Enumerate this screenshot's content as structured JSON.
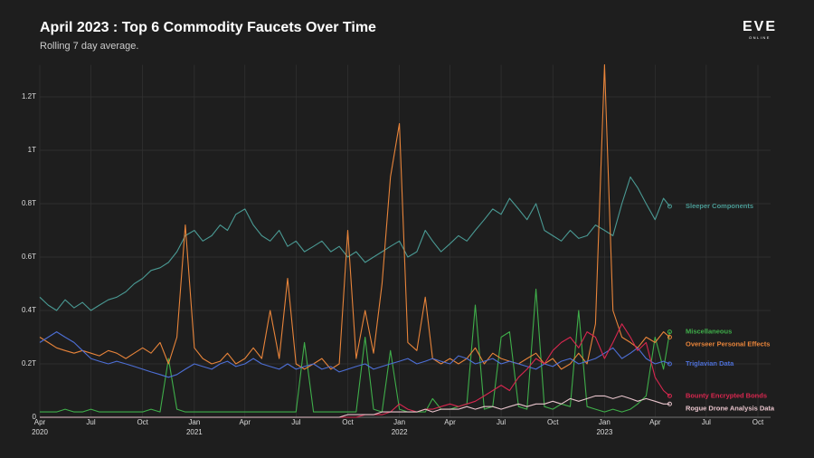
{
  "chart_data": {
    "type": "line",
    "title": "April 2023 : Top 6 Commodity Faucets Over Time",
    "subtitle": "Rolling 7 day average.",
    "logo": {
      "text": "EVE",
      "subtext": "ONLINE"
    },
    "x": [
      "2020-04-01",
      "2020-04-16",
      "2020-05-01",
      "2020-05-16",
      "2020-06-01",
      "2020-06-16",
      "2020-07-01",
      "2020-07-16",
      "2020-08-01",
      "2020-08-16",
      "2020-09-01",
      "2020-09-16",
      "2020-10-01",
      "2020-10-16",
      "2020-11-01",
      "2020-11-16",
      "2020-12-01",
      "2020-12-16",
      "2021-01-01",
      "2021-01-16",
      "2021-02-01",
      "2021-02-16",
      "2021-03-01",
      "2021-03-16",
      "2021-04-01",
      "2021-04-16",
      "2021-05-01",
      "2021-05-16",
      "2021-06-01",
      "2021-06-16",
      "2021-07-01",
      "2021-07-16",
      "2021-08-01",
      "2021-08-16",
      "2021-09-01",
      "2021-09-16",
      "2021-10-01",
      "2021-10-16",
      "2021-11-01",
      "2021-11-16",
      "2021-12-01",
      "2021-12-16",
      "2022-01-01",
      "2022-01-16",
      "2022-02-01",
      "2022-02-16",
      "2022-03-01",
      "2022-03-16",
      "2022-04-01",
      "2022-04-16",
      "2022-05-01",
      "2022-05-16",
      "2022-06-01",
      "2022-06-16",
      "2022-07-01",
      "2022-07-16",
      "2022-08-01",
      "2022-08-16",
      "2022-09-01",
      "2022-09-16",
      "2022-10-01",
      "2022-10-16",
      "2022-11-01",
      "2022-11-16",
      "2022-12-01",
      "2022-12-16",
      "2023-01-01",
      "2023-01-16",
      "2023-02-01",
      "2023-02-16",
      "2023-03-01",
      "2023-03-16",
      "2023-04-01",
      "2023-04-16",
      "2023-04-27"
    ],
    "series": [
      {
        "name": "Sleeper Components",
        "color": "#4a9a94",
        "values": [
          0.45,
          0.42,
          0.4,
          0.44,
          0.41,
          0.43,
          0.4,
          0.42,
          0.44,
          0.45,
          0.47,
          0.5,
          0.52,
          0.55,
          0.56,
          0.58,
          0.62,
          0.68,
          0.7,
          0.66,
          0.68,
          0.72,
          0.7,
          0.76,
          0.78,
          0.72,
          0.68,
          0.66,
          0.7,
          0.64,
          0.66,
          0.62,
          0.64,
          0.66,
          0.62,
          0.64,
          0.6,
          0.62,
          0.58,
          0.6,
          0.62,
          0.64,
          0.66,
          0.6,
          0.62,
          0.7,
          0.66,
          0.62,
          0.65,
          0.68,
          0.66,
          0.7,
          0.74,
          0.78,
          0.76,
          0.82,
          0.78,
          0.74,
          0.8,
          0.7,
          0.68,
          0.66,
          0.7,
          0.67,
          0.68,
          0.72,
          0.7,
          0.68,
          0.8,
          0.9,
          0.86,
          0.8,
          0.74,
          0.82,
          0.79
        ]
      },
      {
        "name": "Miscellaneous",
        "color": "#3fae4a",
        "values": [
          0.02,
          0.02,
          0.02,
          0.03,
          0.02,
          0.02,
          0.03,
          0.02,
          0.02,
          0.02,
          0.02,
          0.02,
          0.02,
          0.03,
          0.02,
          0.22,
          0.03,
          0.02,
          0.02,
          0.02,
          0.02,
          0.02,
          0.02,
          0.02,
          0.02,
          0.02,
          0.02,
          0.02,
          0.02,
          0.02,
          0.02,
          0.28,
          0.02,
          0.02,
          0.02,
          0.02,
          0.02,
          0.02,
          0.3,
          0.03,
          0.02,
          0.25,
          0.03,
          0.02,
          0.02,
          0.02,
          0.07,
          0.03,
          0.03,
          0.04,
          0.05,
          0.42,
          0.03,
          0.04,
          0.3,
          0.32,
          0.04,
          0.03,
          0.48,
          0.04,
          0.03,
          0.05,
          0.04,
          0.4,
          0.04,
          0.03,
          0.02,
          0.03,
          0.02,
          0.03,
          0.05,
          0.08,
          0.3,
          0.18,
          0.32
        ]
      },
      {
        "name": "Overseer Personal Effects",
        "color": "#e8843a",
        "values": [
          0.3,
          0.28,
          0.26,
          0.25,
          0.24,
          0.25,
          0.24,
          0.23,
          0.25,
          0.24,
          0.22,
          0.24,
          0.26,
          0.24,
          0.28,
          0.2,
          0.3,
          0.72,
          0.26,
          0.22,
          0.2,
          0.21,
          0.24,
          0.2,
          0.22,
          0.26,
          0.22,
          0.4,
          0.22,
          0.52,
          0.2,
          0.18,
          0.2,
          0.22,
          0.18,
          0.2,
          0.7,
          0.22,
          0.4,
          0.24,
          0.5,
          0.9,
          1.1,
          0.28,
          0.25,
          0.45,
          0.22,
          0.2,
          0.22,
          0.2,
          0.22,
          0.26,
          0.2,
          0.24,
          0.22,
          0.21,
          0.2,
          0.22,
          0.24,
          0.2,
          0.22,
          0.18,
          0.2,
          0.24,
          0.2,
          0.35,
          1.32,
          0.4,
          0.3,
          0.28,
          0.26,
          0.3,
          0.28,
          0.32,
          0.3
        ]
      },
      {
        "name": "Triglavian Data",
        "color": "#4d6fd6",
        "values": [
          0.28,
          0.3,
          0.32,
          0.3,
          0.28,
          0.25,
          0.22,
          0.21,
          0.2,
          0.21,
          0.2,
          0.19,
          0.18,
          0.17,
          0.16,
          0.15,
          0.16,
          0.18,
          0.2,
          0.19,
          0.18,
          0.2,
          0.21,
          0.19,
          0.2,
          0.22,
          0.2,
          0.19,
          0.18,
          0.2,
          0.18,
          0.19,
          0.2,
          0.18,
          0.19,
          0.17,
          0.18,
          0.19,
          0.2,
          0.18,
          0.19,
          0.2,
          0.21,
          0.22,
          0.2,
          0.21,
          0.22,
          0.21,
          0.2,
          0.23,
          0.22,
          0.2,
          0.21,
          0.22,
          0.2,
          0.21,
          0.2,
          0.19,
          0.18,
          0.2,
          0.19,
          0.21,
          0.22,
          0.2,
          0.21,
          0.22,
          0.24,
          0.26,
          0.22,
          0.24,
          0.26,
          0.22,
          0.2,
          0.21,
          0.2
        ]
      },
      {
        "name": "Bounty Encrypted Bonds",
        "color": "#d8274f",
        "values": [
          0,
          0,
          0,
          0,
          0,
          0,
          0,
          0,
          0,
          0,
          0,
          0,
          0,
          0,
          0,
          0,
          0,
          0,
          0,
          0,
          0,
          0,
          0,
          0,
          0,
          0,
          0,
          0,
          0,
          0,
          0,
          0,
          0,
          0,
          0,
          0,
          0,
          0,
          0.01,
          0.01,
          0.01,
          0.02,
          0.05,
          0.03,
          0.02,
          0.03,
          0.03,
          0.04,
          0.05,
          0.04,
          0.05,
          0.06,
          0.08,
          0.1,
          0.12,
          0.1,
          0.15,
          0.18,
          0.22,
          0.2,
          0.25,
          0.28,
          0.3,
          0.26,
          0.32,
          0.3,
          0.22,
          0.28,
          0.35,
          0.3,
          0.25,
          0.28,
          0.15,
          0.1,
          0.08
        ]
      },
      {
        "name": "Rogue Drone Analysis Data",
        "color": "#e8c4cc",
        "values": [
          0,
          0,
          0,
          0,
          0,
          0,
          0,
          0,
          0,
          0,
          0,
          0,
          0,
          0,
          0,
          0,
          0,
          0,
          0,
          0,
          0,
          0,
          0,
          0,
          0,
          0,
          0,
          0,
          0,
          0,
          0,
          0,
          0,
          0,
          0,
          0,
          0.01,
          0.01,
          0.01,
          0.01,
          0.02,
          0.02,
          0.02,
          0.02,
          0.02,
          0.03,
          0.02,
          0.03,
          0.03,
          0.03,
          0.04,
          0.03,
          0.04,
          0.04,
          0.03,
          0.04,
          0.05,
          0.04,
          0.05,
          0.05,
          0.06,
          0.05,
          0.07,
          0.06,
          0.07,
          0.08,
          0.08,
          0.07,
          0.08,
          0.07,
          0.06,
          0.07,
          0.06,
          0.05,
          0.05
        ]
      }
    ],
    "xlim": [
      "2020-04-01",
      "2023-10-01"
    ],
    "xticks": [
      {
        "value": "2020-04-01",
        "label": "Apr",
        "year": "2020"
      },
      {
        "value": "2020-07-01",
        "label": "Jul"
      },
      {
        "value": "2020-10-01",
        "label": "Oct"
      },
      {
        "value": "2021-01-01",
        "label": "Jan",
        "year": "2021"
      },
      {
        "value": "2021-04-01",
        "label": "Apr"
      },
      {
        "value": "2021-07-01",
        "label": "Jul"
      },
      {
        "value": "2021-10-01",
        "label": "Oct"
      },
      {
        "value": "2022-01-01",
        "label": "Jan",
        "year": "2022"
      },
      {
        "value": "2022-04-01",
        "label": "Apr"
      },
      {
        "value": "2022-07-01",
        "label": "Jul"
      },
      {
        "value": "2022-10-01",
        "label": "Oct"
      },
      {
        "value": "2023-01-01",
        "label": "Jan",
        "year": "2023"
      },
      {
        "value": "2023-04-01",
        "label": "Apr"
      },
      {
        "value": "2023-07-01",
        "label": "Jul"
      },
      {
        "value": "2023-10-01",
        "label": "Oct"
      }
    ],
    "ylim": [
      0,
      1.32
    ],
    "yticks": [
      0,
      {
        "value": 0.2,
        "label": "0.2T"
      },
      {
        "value": 0.4,
        "label": "0.4T"
      },
      {
        "value": 0.6,
        "label": "0.6T"
      },
      {
        "value": 0.8,
        "label": "0.8T"
      },
      {
        "value": 1,
        "label": "1T"
      },
      {
        "value": 1.2,
        "label": "1.2T"
      }
    ],
    "grid": true
  }
}
